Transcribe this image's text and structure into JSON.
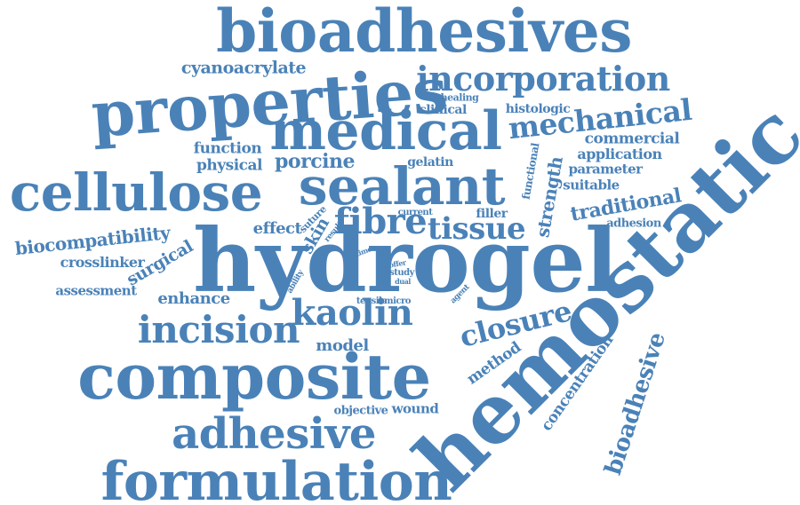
{
  "colors": {
    "word": "#4a82b8",
    "background": "#ffffff"
  },
  "words": [
    {
      "id": "bioadhesives",
      "text": "bioadhesives"
    },
    {
      "id": "cyanoacrylate",
      "text": "cyanoacrylate"
    },
    {
      "id": "properties",
      "text": "properties"
    },
    {
      "id": "incorporation",
      "text": "incorporation"
    },
    {
      "id": "healing",
      "text": "healing"
    },
    {
      "id": "clinical",
      "text": "clinical"
    },
    {
      "id": "histologic",
      "text": "histologic"
    },
    {
      "id": "mechanical",
      "text": "mechanical"
    },
    {
      "id": "medical",
      "text": "medical"
    },
    {
      "id": "commercial",
      "text": "commercial"
    },
    {
      "id": "function",
      "text": "function"
    },
    {
      "id": "physical",
      "text": "physical"
    },
    {
      "id": "porcine",
      "text": "porcine"
    },
    {
      "id": "gelatin",
      "text": "gelatin"
    },
    {
      "id": "functional",
      "text": "functional"
    },
    {
      "id": "application",
      "text": "application"
    },
    {
      "id": "parameter",
      "text": "parameter"
    },
    {
      "id": "suitable",
      "text": "suitable"
    },
    {
      "id": "cellulose",
      "text": "cellulose"
    },
    {
      "id": "sealant",
      "text": "sealant"
    },
    {
      "id": "strength",
      "text": "strength"
    },
    {
      "id": "traditional",
      "text": "traditional"
    },
    {
      "id": "hemostatic",
      "text": "hemostatic"
    },
    {
      "id": "effect",
      "text": "effect"
    },
    {
      "id": "suture",
      "text": "suture"
    },
    {
      "id": "fibre",
      "text": "fibre"
    },
    {
      "id": "current",
      "text": "current"
    },
    {
      "id": "filler",
      "text": "filler"
    },
    {
      "id": "tissue",
      "text": "tissue"
    },
    {
      "id": "adhesion",
      "text": "adhesion"
    },
    {
      "id": "biocompatibility",
      "text": "biocompatibility"
    },
    {
      "id": "skin",
      "text": "skin"
    },
    {
      "id": "result",
      "text": "result"
    },
    {
      "id": "hydrogel",
      "text": "hydrogel"
    },
    {
      "id": "crosslinker",
      "text": "crosslinker"
    },
    {
      "id": "time",
      "text": "time"
    },
    {
      "id": "surgical",
      "text": "surgical"
    },
    {
      "id": "offer",
      "text": "offer"
    },
    {
      "id": "study",
      "text": "study"
    },
    {
      "id": "dual",
      "text": "dual"
    },
    {
      "id": "ability",
      "text": "ability"
    },
    {
      "id": "agent",
      "text": "agent"
    },
    {
      "id": "assessment",
      "text": "assessment"
    },
    {
      "id": "enhance",
      "text": "enhance"
    },
    {
      "id": "tensile",
      "text": "tensile"
    },
    {
      "id": "micro",
      "text": "micro"
    },
    {
      "id": "kaolin",
      "text": "kaolin"
    },
    {
      "id": "closure",
      "text": "closure"
    },
    {
      "id": "incision",
      "text": "incision"
    },
    {
      "id": "model",
      "text": "model"
    },
    {
      "id": "method",
      "text": "method"
    },
    {
      "id": "bioadhesive",
      "text": "bioadhesive"
    },
    {
      "id": "composite",
      "text": "composite"
    },
    {
      "id": "concentration",
      "text": "concentration"
    },
    {
      "id": "objective",
      "text": "objective"
    },
    {
      "id": "wound",
      "text": "wound"
    },
    {
      "id": "adhesive",
      "text": "adhesive"
    },
    {
      "id": "formulation",
      "text": "formulation"
    }
  ]
}
